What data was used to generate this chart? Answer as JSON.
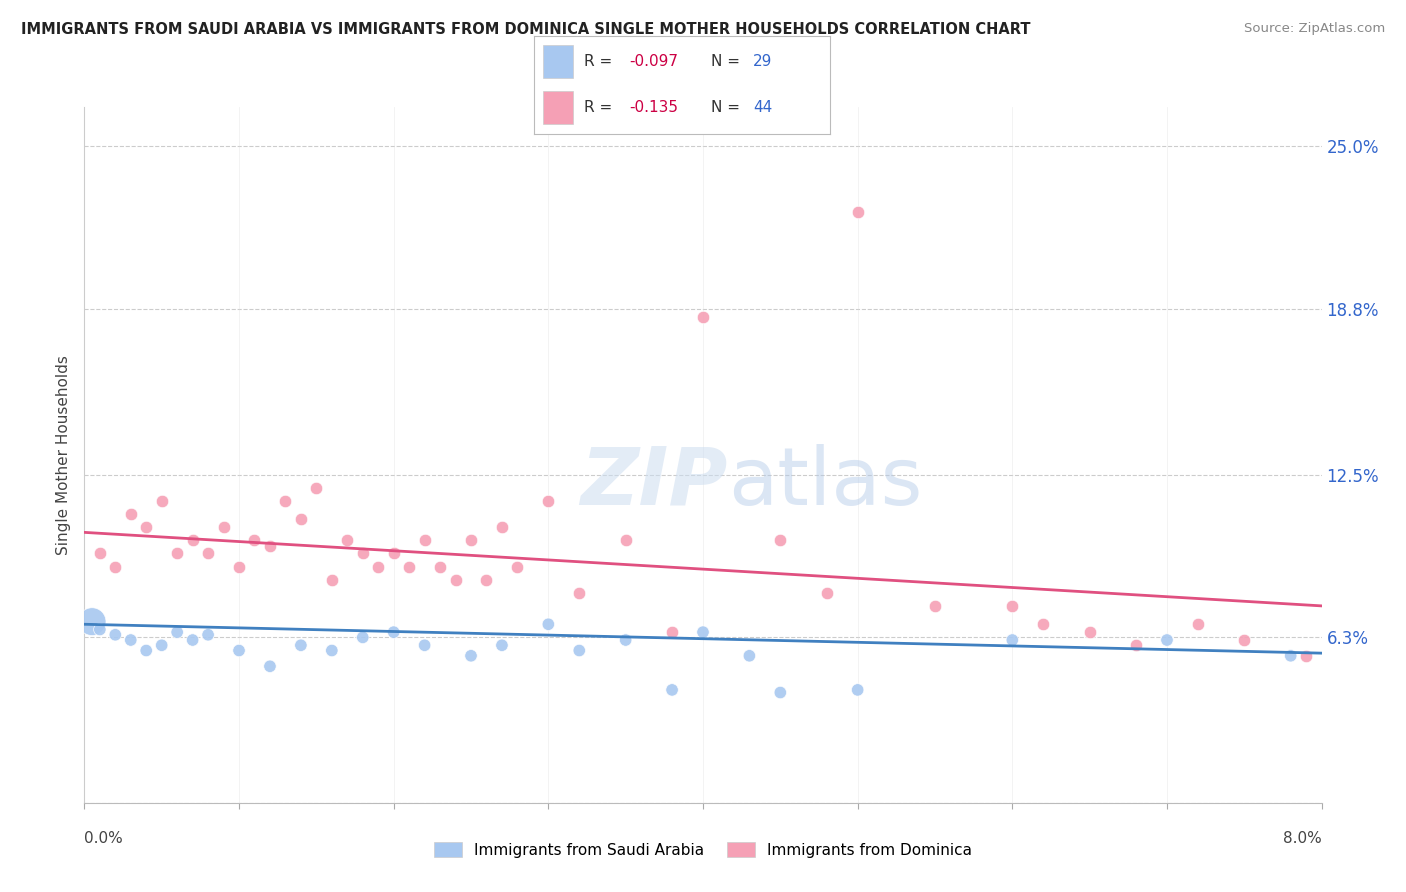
{
  "title": "IMMIGRANTS FROM SAUDI ARABIA VS IMMIGRANTS FROM DOMINICA SINGLE MOTHER HOUSEHOLDS CORRELATION CHART",
  "source": "Source: ZipAtlas.com",
  "ylabel": "Single Mother Households",
  "x_min": 0.0,
  "x_max": 0.08,
  "y_min": 0.0,
  "y_max": 0.265,
  "ytick_vals": [
    0.0,
    0.063,
    0.125,
    0.188,
    0.25
  ],
  "ytick_labels": [
    "",
    "6.3%",
    "12.5%",
    "18.8%",
    "25.0%"
  ],
  "series1_label": "Immigrants from Saudi Arabia",
  "series2_label": "Immigrants from Dominica",
  "series1_color": "#a8c8f0",
  "series2_color": "#f5a0b5",
  "series1_line_color": "#4080c0",
  "series2_line_color": "#e05080",
  "series1_R": -0.097,
  "series1_N": 29,
  "series2_R": -0.135,
  "series2_N": 44,
  "legend_R_color": "#cc0044",
  "legend_N_color": "#3366cc",
  "background_color": "#ffffff",
  "series1_x": [
    0.0005,
    0.001,
    0.002,
    0.003,
    0.004,
    0.005,
    0.006,
    0.007,
    0.008,
    0.01,
    0.012,
    0.014,
    0.016,
    0.018,
    0.02,
    0.022,
    0.025,
    0.027,
    0.03,
    0.032,
    0.035,
    0.038,
    0.04,
    0.043,
    0.045,
    0.05,
    0.06,
    0.07,
    0.078
  ],
  "series1_y": [
    0.069,
    0.066,
    0.064,
    0.062,
    0.058,
    0.06,
    0.065,
    0.062,
    0.064,
    0.058,
    0.052,
    0.06,
    0.058,
    0.063,
    0.065,
    0.06,
    0.056,
    0.06,
    0.068,
    0.058,
    0.062,
    0.043,
    0.065,
    0.056,
    0.042,
    0.043,
    0.062,
    0.062,
    0.056
  ],
  "series1_size": [
    400,
    80,
    80,
    80,
    80,
    80,
    80,
    80,
    80,
    80,
    80,
    80,
    80,
    80,
    80,
    80,
    80,
    80,
    80,
    80,
    80,
    80,
    80,
    80,
    80,
    80,
    80,
    80,
    80
  ],
  "series2_x": [
    0.001,
    0.002,
    0.003,
    0.004,
    0.005,
    0.006,
    0.007,
    0.008,
    0.009,
    0.01,
    0.011,
    0.012,
    0.013,
    0.014,
    0.015,
    0.016,
    0.017,
    0.018,
    0.019,
    0.02,
    0.021,
    0.022,
    0.023,
    0.024,
    0.025,
    0.026,
    0.027,
    0.028,
    0.03,
    0.032,
    0.035,
    0.038,
    0.04,
    0.045,
    0.048,
    0.05,
    0.055,
    0.06,
    0.062,
    0.065,
    0.068,
    0.072,
    0.075,
    0.079
  ],
  "series2_y": [
    0.095,
    0.09,
    0.11,
    0.105,
    0.115,
    0.095,
    0.1,
    0.095,
    0.105,
    0.09,
    0.1,
    0.098,
    0.115,
    0.108,
    0.12,
    0.085,
    0.1,
    0.095,
    0.09,
    0.095,
    0.09,
    0.1,
    0.09,
    0.085,
    0.1,
    0.085,
    0.105,
    0.09,
    0.115,
    0.08,
    0.1,
    0.065,
    0.185,
    0.1,
    0.08,
    0.225,
    0.075,
    0.075,
    0.068,
    0.065,
    0.06,
    0.068,
    0.062,
    0.056
  ],
  "series1_line_y0": 0.068,
  "series1_line_y1": 0.057,
  "series2_line_y0": 0.103,
  "series2_line_y1": 0.075
}
